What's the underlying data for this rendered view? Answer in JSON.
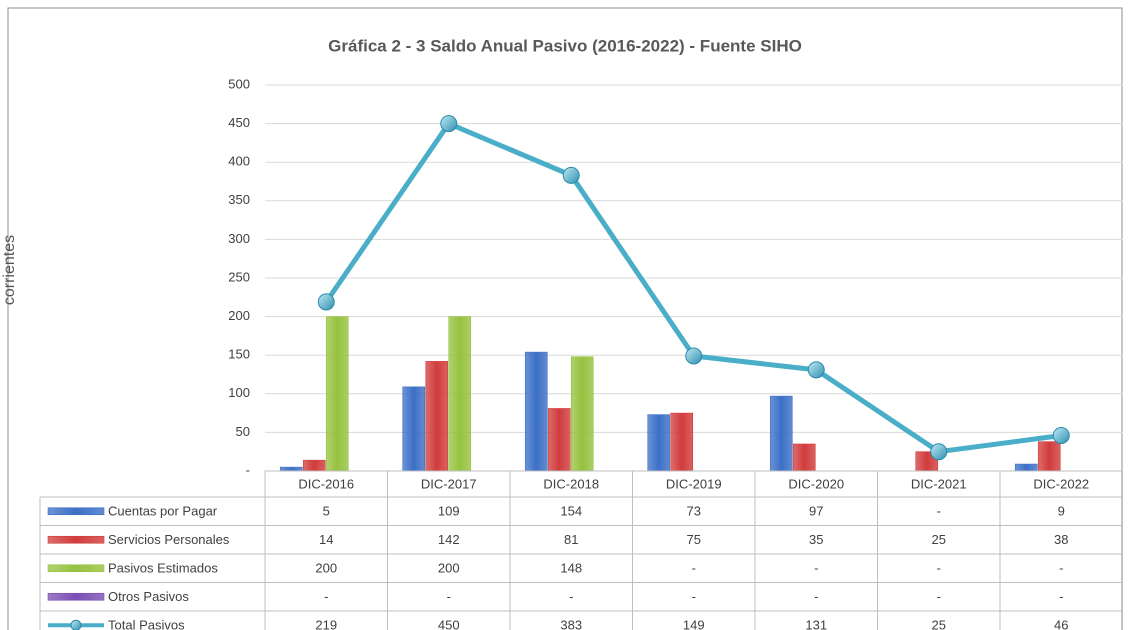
{
  "chart_data": {
    "type": "bar",
    "title": "Gráfica 2 - 3  Saldo Anual Pasivo (2016-2022) - Fuente SIHO",
    "ylabel": "$ Millones de pesos corrientes",
    "categories": [
      "DIC-2016",
      "DIC-2017",
      "DIC-2018",
      "DIC-2019",
      "DIC-2020",
      "DIC-2021",
      "DIC-2022"
    ],
    "series": [
      {
        "name": "Cuentas por Pagar",
        "color": "#3b6fc6",
        "values": [
          5,
          109,
          154,
          73,
          97,
          null,
          9
        ],
        "value_labels": [
          "5",
          "109",
          "154",
          "73",
          "97",
          "-",
          "9"
        ]
      },
      {
        "name": "Servicios Personales",
        "color": "#d13b3b",
        "values": [
          14,
          142,
          81,
          75,
          35,
          25,
          38
        ]
      },
      {
        "name": "Pasivos Estimados",
        "color": "#96c23f",
        "values": [
          200,
          200,
          148,
          null,
          null,
          null,
          null
        ],
        "value_labels": [
          "200",
          "200",
          "148",
          "-",
          "-",
          "-",
          "-"
        ]
      },
      {
        "name": "Otros Pasivos",
        "color": "#7b4fb3",
        "values": [
          null,
          null,
          null,
          null,
          null,
          null,
          null
        ],
        "value_labels": [
          "-",
          "-",
          "-",
          "-",
          "-",
          "-",
          "-"
        ]
      },
      {
        "name": "Total Pasivos",
        "color": "#4aaec8",
        "type": "line",
        "values": [
          219,
          450,
          383,
          149,
          131,
          25,
          46
        ]
      }
    ],
    "ylim": [
      0,
      500
    ],
    "yticks": [
      {
        "value": 0,
        "label": "-"
      },
      50,
      100,
      150,
      200,
      250,
      300,
      350,
      400,
      450,
      500
    ],
    "grid": true
  }
}
